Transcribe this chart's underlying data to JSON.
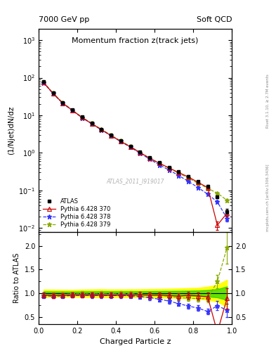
{
  "title_main": "Momentum fraction z(track jets)",
  "top_left_label": "7000 GeV pp",
  "top_right_label": "Soft QCD",
  "right_label_top": "Rivet 3.1.10, ≥ 2.7M events",
  "right_label_bot": "mcplots.cern.ch [arXiv:1306.3436]",
  "watermark": "ATLAS_2011_I919017",
  "xlabel": "Charged Particle z",
  "ylabel_main": "(1/Njet)dN/dz",
  "ylabel_ratio": "Ratio to ATLAS",
  "x": [
    0.025,
    0.075,
    0.125,
    0.175,
    0.225,
    0.275,
    0.325,
    0.375,
    0.425,
    0.475,
    0.525,
    0.575,
    0.625,
    0.675,
    0.725,
    0.775,
    0.825,
    0.875,
    0.925,
    0.975
  ],
  "atlas_y": [
    78.0,
    40.0,
    22.0,
    14.0,
    9.0,
    6.2,
    4.3,
    3.0,
    2.1,
    1.5,
    1.05,
    0.75,
    0.55,
    0.42,
    0.32,
    0.24,
    0.175,
    0.13,
    0.068,
    0.028
  ],
  "atlas_yerr": [
    3.0,
    1.5,
    0.8,
    0.5,
    0.35,
    0.25,
    0.18,
    0.12,
    0.085,
    0.062,
    0.044,
    0.033,
    0.025,
    0.02,
    0.016,
    0.013,
    0.01,
    0.009,
    0.006,
    0.004
  ],
  "py370_y": [
    75.0,
    38.0,
    21.0,
    13.5,
    8.7,
    6.0,
    4.15,
    2.88,
    2.03,
    1.45,
    1.02,
    0.72,
    0.53,
    0.4,
    0.3,
    0.23,
    0.165,
    0.12,
    0.012,
    0.025
  ],
  "py370_yerr": [
    2.5,
    1.3,
    0.7,
    0.45,
    0.3,
    0.22,
    0.16,
    0.11,
    0.08,
    0.058,
    0.041,
    0.03,
    0.022,
    0.018,
    0.014,
    0.011,
    0.009,
    0.008,
    0.003,
    0.005
  ],
  "py378_y": [
    74.0,
    37.5,
    20.8,
    13.3,
    8.6,
    5.9,
    4.1,
    2.85,
    2.0,
    1.42,
    0.98,
    0.68,
    0.48,
    0.35,
    0.25,
    0.175,
    0.12,
    0.08,
    0.05,
    0.018
  ],
  "py378_yerr": [
    2.2,
    1.2,
    0.65,
    0.42,
    0.28,
    0.2,
    0.15,
    0.105,
    0.075,
    0.055,
    0.038,
    0.027,
    0.02,
    0.016,
    0.012,
    0.009,
    0.007,
    0.006,
    0.005,
    0.003
  ],
  "py379_y": [
    76.0,
    39.0,
    21.5,
    13.8,
    8.9,
    6.1,
    4.25,
    2.95,
    2.08,
    1.48,
    1.03,
    0.73,
    0.53,
    0.39,
    0.29,
    0.215,
    0.155,
    0.115,
    0.085,
    0.055
  ],
  "py379_yerr": [
    2.3,
    1.25,
    0.68,
    0.44,
    0.29,
    0.21,
    0.155,
    0.108,
    0.078,
    0.057,
    0.04,
    0.029,
    0.021,
    0.016,
    0.013,
    0.01,
    0.008,
    0.007,
    0.006,
    0.005
  ],
  "atlas_color": "#000000",
  "py370_color": "#cc0000",
  "py378_color": "#3333ff",
  "py379_color": "#88aa00",
  "ylim_main": [
    0.008,
    2000
  ],
  "ylim_ratio": [
    0.35,
    2.3
  ],
  "xlim": [
    0.0,
    1.0
  ]
}
